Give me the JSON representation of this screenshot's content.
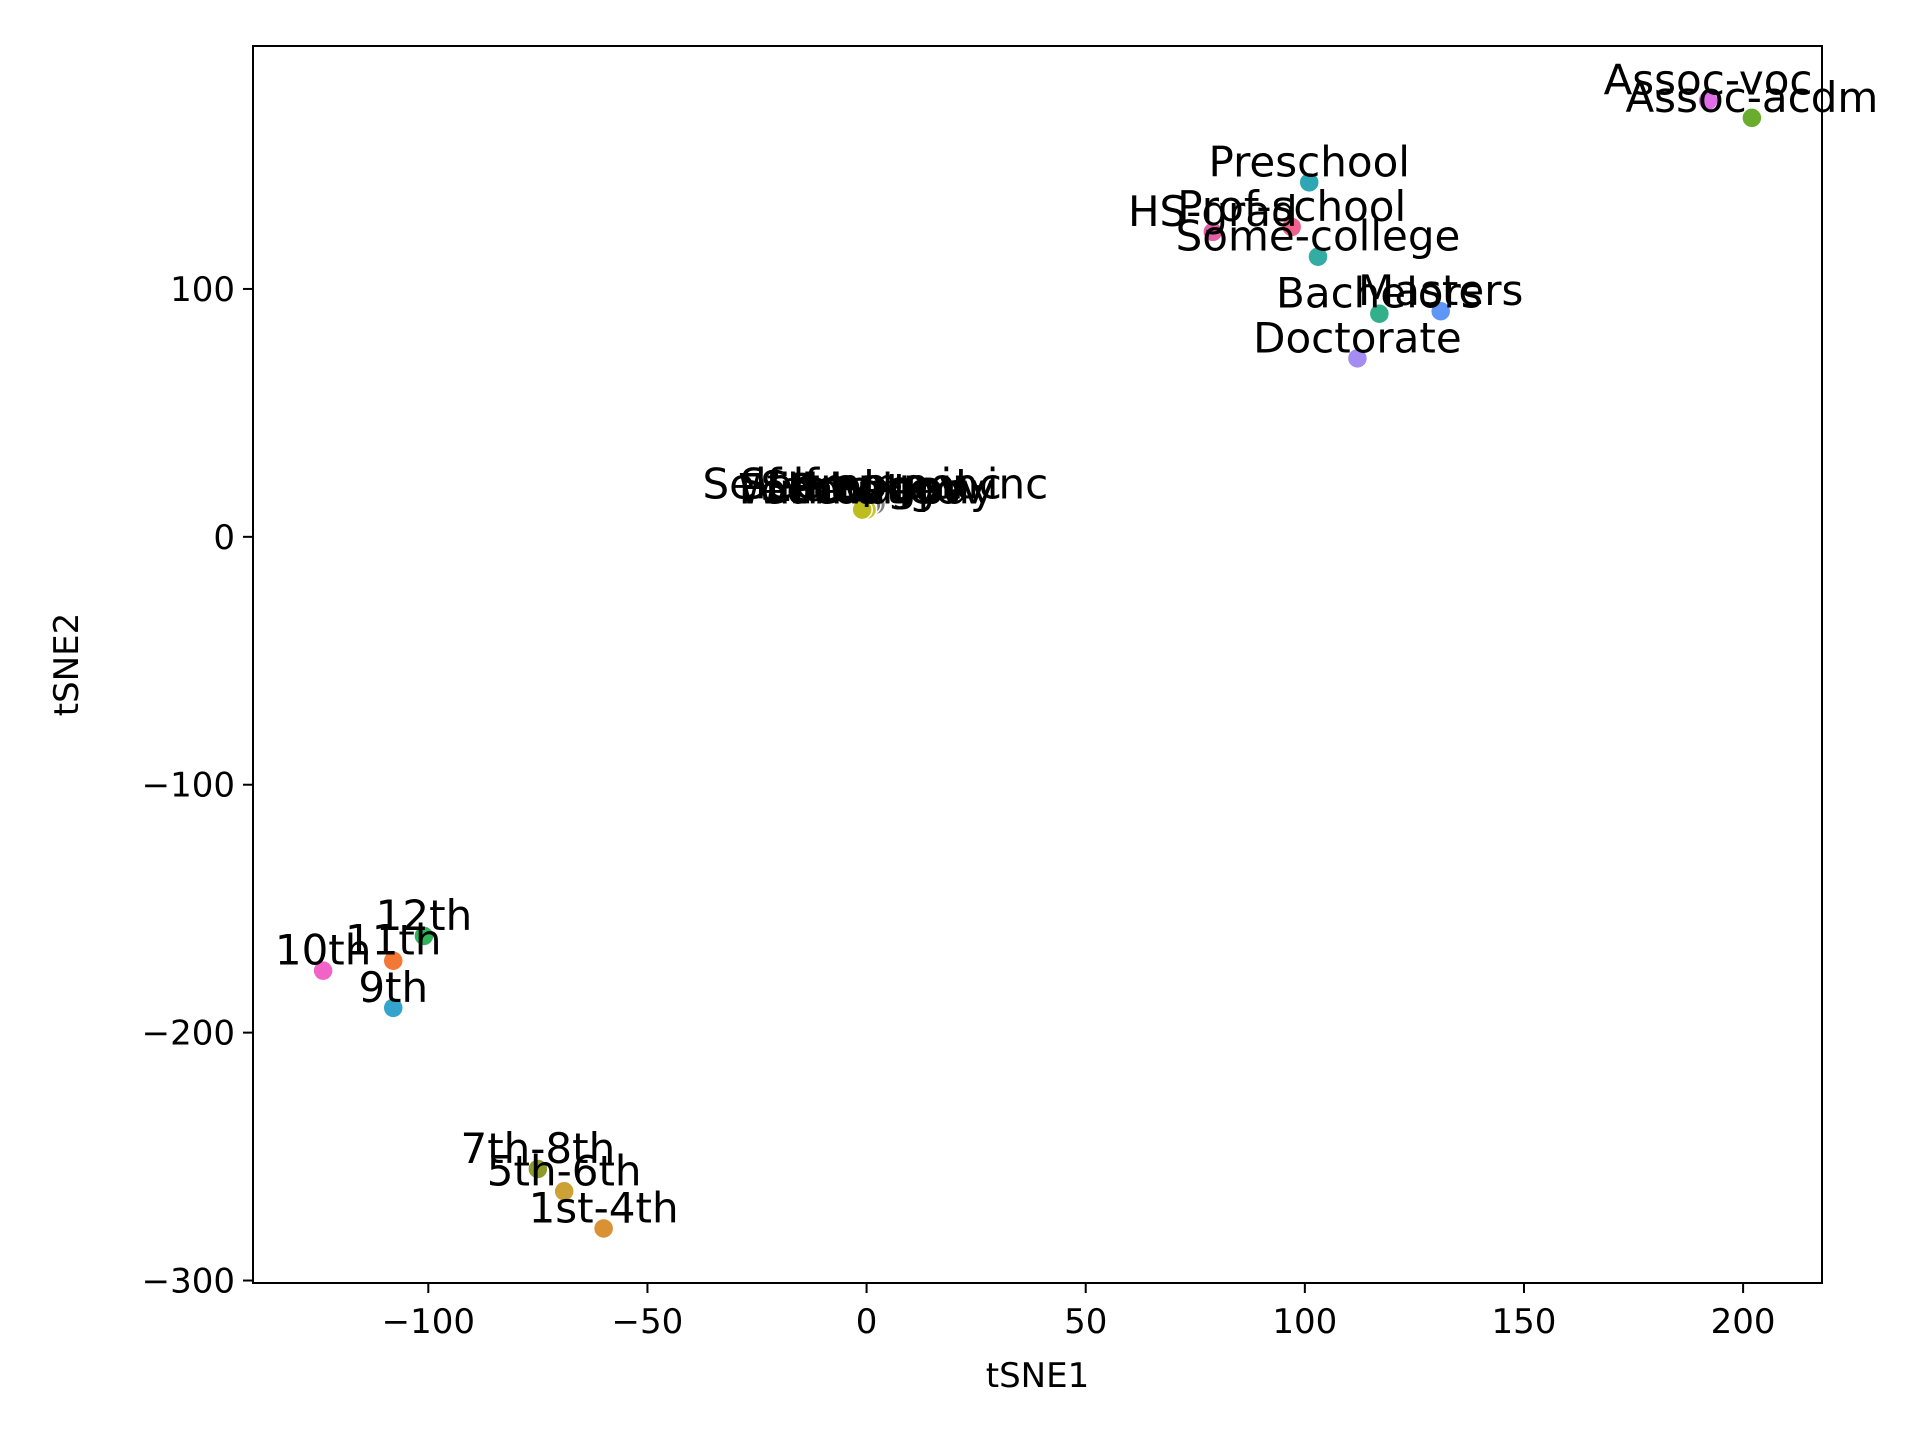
{
  "chart_data": {
    "type": "scatter",
    "title": "",
    "xlabel": "tSNE1",
    "ylabel": "tSNE2",
    "xlim": [
      -140,
      218
    ],
    "ylim": [
      -301,
      198
    ],
    "xticks": [
      -100,
      -50,
      0,
      50,
      100,
      150,
      200
    ],
    "yticks": [
      -300,
      -200,
      -100,
      0,
      100
    ],
    "grid": false,
    "legend": "none",
    "points": [
      {
        "label": "Assoc-voc",
        "x": 192,
        "y": 176,
        "color": "#e16ee8"
      },
      {
        "label": "Assoc-acdm",
        "x": 202,
        "y": 169,
        "color": "#6aac2e"
      },
      {
        "label": "Preschool",
        "x": 101,
        "y": 143,
        "color": "#2ea7b4"
      },
      {
        "label": "Prof-school",
        "x": 97,
        "y": 125,
        "color": "#f0628d"
      },
      {
        "label": "HS-grad",
        "x": 79,
        "y": 123,
        "color": "#e45fa8"
      },
      {
        "label": "Some-college",
        "x": 103,
        "y": 113,
        "color": "#33ada4"
      },
      {
        "label": "Masters",
        "x": 131,
        "y": 91,
        "color": "#5e97f6"
      },
      {
        "label": "Bachelors",
        "x": 117,
        "y": 90,
        "color": "#32b08a"
      },
      {
        "label": "Doctorate",
        "x": 112,
        "y": 72,
        "color": "#a48cf2"
      },
      {
        "label": "Self-emp-not-inc",
        "x": 2,
        "y": 13,
        "color": "#808080"
      },
      {
        "label": "Self-emp-inc",
        "x": 1,
        "y": 13,
        "color": "#777777"
      },
      {
        "label": "Local-gov",
        "x": 0,
        "y": 12,
        "color": "#999999"
      },
      {
        "label": "State-gov",
        "x": -1,
        "y": 12,
        "color": "#aaaaaa"
      },
      {
        "label": "Federal-gov",
        "x": -1,
        "y": 11,
        "color": "#b4ae2c"
      },
      {
        "label": "Without-pay",
        "x": 0,
        "y": 11,
        "color": "#c9c32a"
      },
      {
        "label": "Private",
        "x": -1,
        "y": 11,
        "color": "#bdbd1f"
      },
      {
        "label": "12th",
        "x": -101,
        "y": -161,
        "color": "#2fb45a"
      },
      {
        "label": "11th",
        "x": -108,
        "y": -171,
        "color": "#f37735"
      },
      {
        "label": "10th",
        "x": -124,
        "y": -175,
        "color": "#f263c8"
      },
      {
        "label": "9th",
        "x": -108,
        "y": -190,
        "color": "#33a4cc"
      },
      {
        "label": "7th-8th",
        "x": -75,
        "y": -255,
        "color": "#8d9a2a"
      },
      {
        "label": "5th-6th",
        "x": -69,
        "y": -264,
        "color": "#cca236"
      },
      {
        "label": "1st-4th",
        "x": -60,
        "y": -279,
        "color": "#d99133"
      }
    ]
  }
}
